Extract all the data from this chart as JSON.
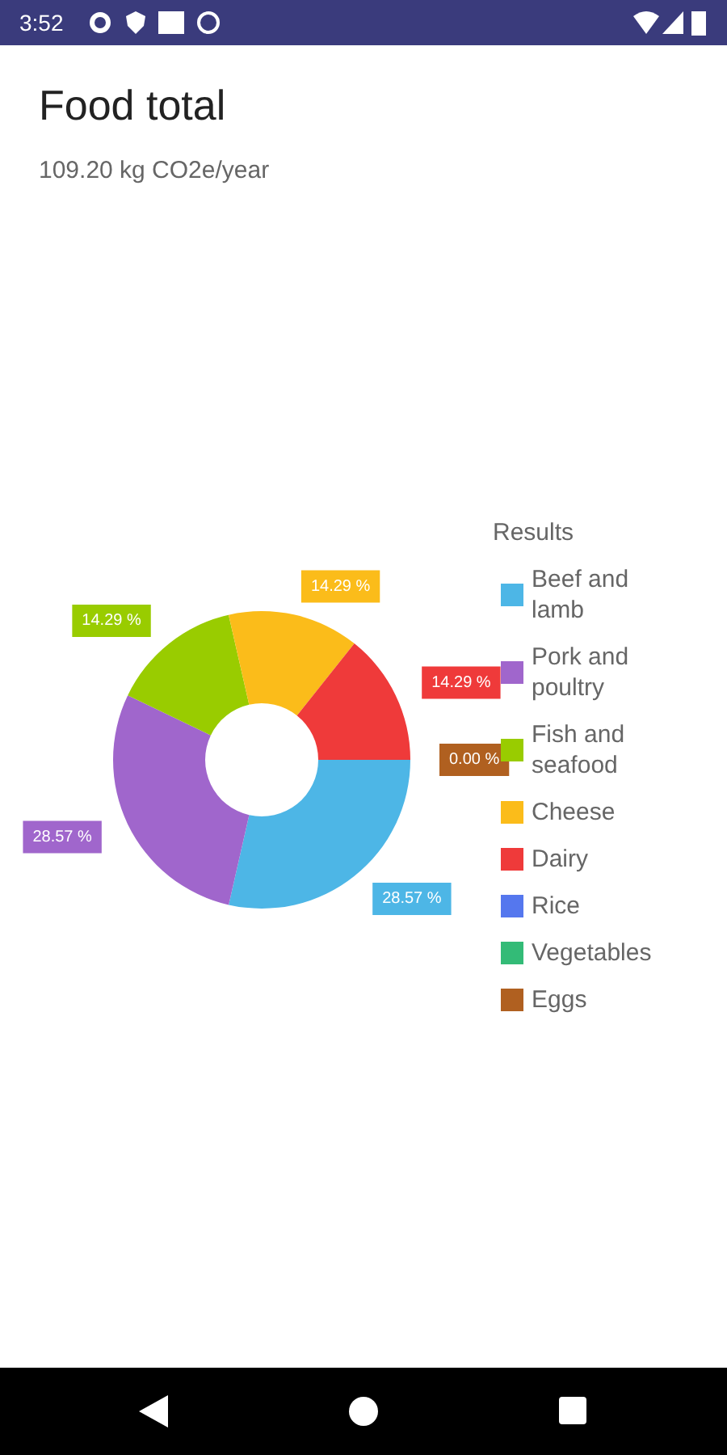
{
  "chart_data": {
    "type": "donut",
    "title": "Food total",
    "subtitle": "109.20 kg CO2e/year",
    "legend_title": "Results",
    "legend": "right",
    "categories": [
      "Beef and lamb",
      "Pork and poultry",
      "Fish and seafood",
      "Cheese",
      "Dairy",
      "Rice",
      "Vegetables",
      "Eggs"
    ],
    "values": [
      28.57,
      28.57,
      14.29,
      14.29,
      14.29,
      0,
      0,
      0
    ],
    "value_labels": [
      "28.57 %",
      "28.57 %",
      "14.29 %",
      "14.29 %",
      "14.29 %",
      null,
      null,
      "0.00 %"
    ],
    "colors": [
      "#4db6e6",
      "#a066cc",
      "#99cc00",
      "#fbbc1a",
      "#ef3a3a",
      "#5577ee",
      "#33bb77",
      "#b06020"
    ],
    "annotations": [
      "3:52"
    ]
  }
}
